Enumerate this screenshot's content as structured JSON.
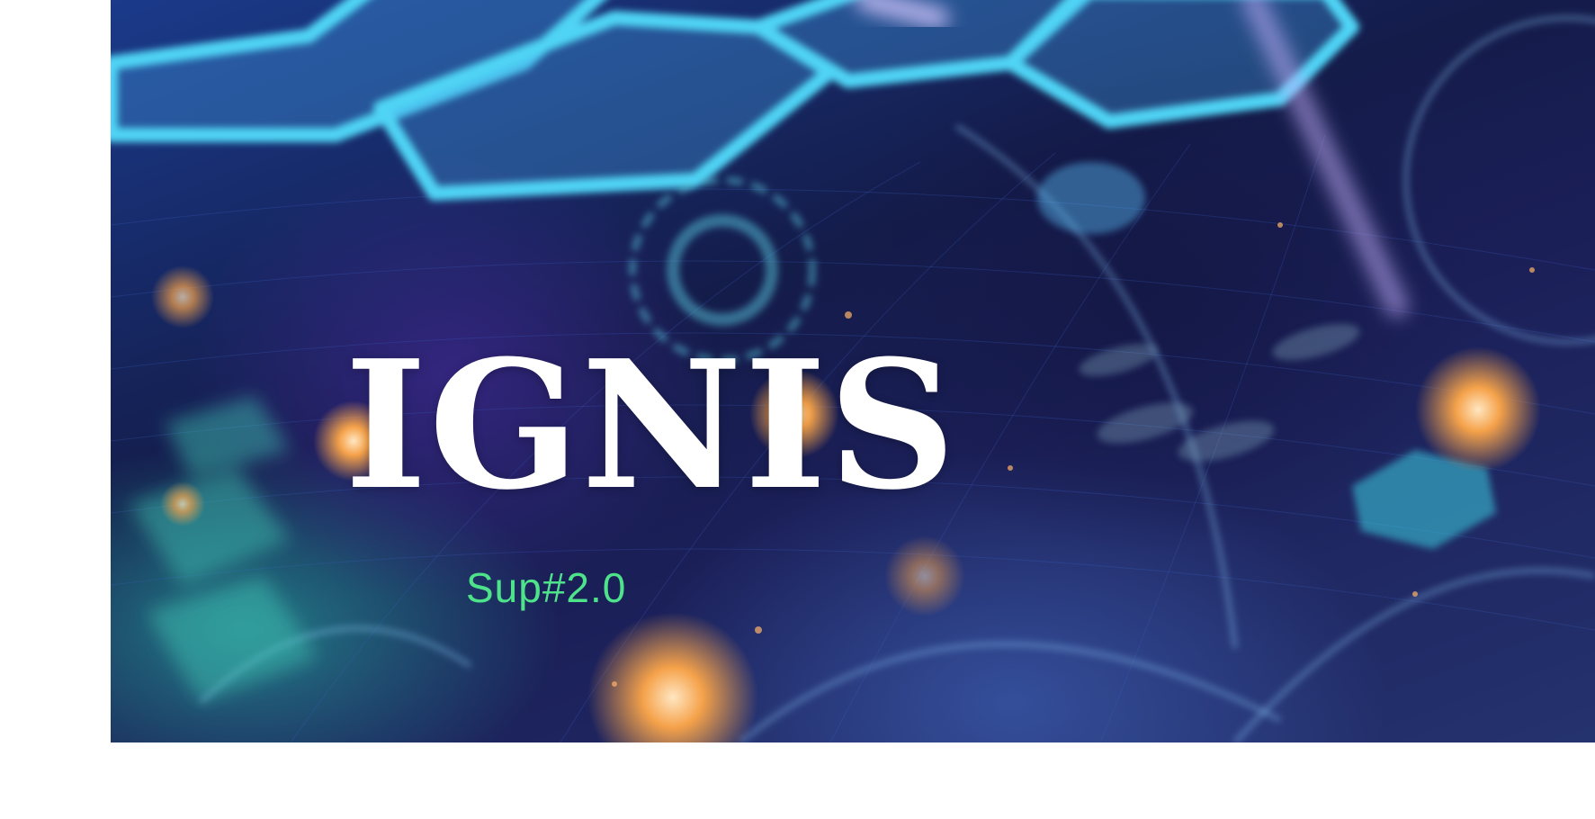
{
  "hero": {
    "title": "IGNIS",
    "subtitle": "Sup#2.0"
  },
  "colors": {
    "background": "#ffffff",
    "title": "#ffffff",
    "subtitle": "#4ee38a",
    "hex_glow": "#4fd4f5"
  }
}
